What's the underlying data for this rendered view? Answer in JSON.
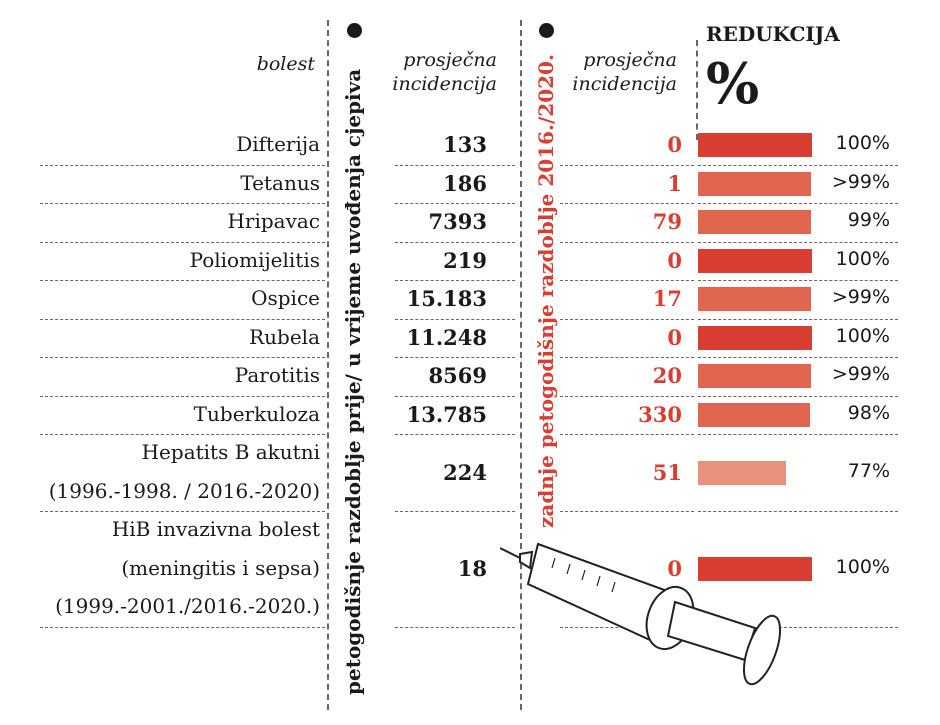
{
  "chart_data": {
    "type": "table",
    "headers": {
      "disease": "bolest",
      "period1": "petogodišnje razdoblje prije/ u vrijeme uvođenja cjepiva",
      "avg1": [
        "prosječna",
        "incidencija"
      ],
      "period2": "zadnje petogodišnje razdoblje 2016./2020.",
      "avg2": [
        "prosječna",
        "incidencija"
      ],
      "reduction": "REDUKCIJA",
      "percent": "%"
    },
    "rows": [
      {
        "name": [
          "Difterija"
        ],
        "before": "133",
        "after": "0",
        "reduction": 100,
        "label": "100%"
      },
      {
        "name": [
          "Tetanus"
        ],
        "before": "186",
        "after": "1",
        "reduction": 99.5,
        "label": ">99%"
      },
      {
        "name": [
          "Hripavac"
        ],
        "before": "7393",
        "after": "79",
        "reduction": 99,
        "label": "99%"
      },
      {
        "name": [
          "Poliomijelitis"
        ],
        "before": "219",
        "after": "0",
        "reduction": 100,
        "label": "100%"
      },
      {
        "name": [
          "Ospice"
        ],
        "before": "15.183",
        "after": "17",
        "reduction": 99.5,
        "label": ">99%"
      },
      {
        "name": [
          "Rubela"
        ],
        "before": "11.248",
        "after": "0",
        "reduction": 100,
        "label": "100%"
      },
      {
        "name": [
          "Parotitis"
        ],
        "before": "8569",
        "after": "20",
        "reduction": 99.5,
        "label": ">99%"
      },
      {
        "name": [
          "Tuberkuloza"
        ],
        "before": "13.785",
        "after": "330",
        "reduction": 98,
        "label": "98%"
      },
      {
        "name": [
          "Hepatits B akutni",
          "(1996.-1998. / 2016.-2020)"
        ],
        "before": "224",
        "after": "51",
        "reduction": 77,
        "label": "77%"
      },
      {
        "name": [
          "HiB invazivna bolest",
          "(meningitis i sepsa)",
          "(1999.-2001./2016.-2020.)"
        ],
        "before": "18",
        "after": "0",
        "reduction": 100,
        "label": "100%"
      }
    ],
    "colors": {
      "full": "#d93e33",
      "partial": "#e0664f",
      "low": "#e8927b",
      "text_red": "#d93e33"
    }
  }
}
